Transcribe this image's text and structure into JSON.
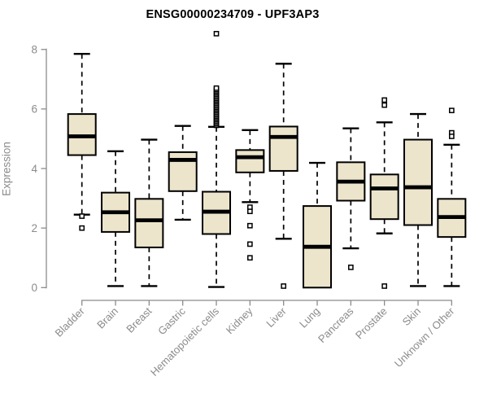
{
  "chart_data": {
    "type": "box",
    "title": "ENSG00000234709 - UPF3AP3",
    "ylabel": "Expression",
    "xlabel": "",
    "ylim": [
      0,
      8
    ],
    "yticks": [
      0,
      2,
      4,
      6,
      8
    ],
    "grid": false,
    "legend": "none",
    "categories": [
      "Bladder",
      "Brain",
      "Breast",
      "Gastric",
      "Hematopoietic cells",
      "Kidney",
      "Liver",
      "Lung",
      "Pancreas",
      "Prostate",
      "Skin",
      "Unknown / Other"
    ],
    "series": [
      {
        "name": "Bladder",
        "whisker_low": 2.45,
        "q1": 4.45,
        "median": 5.08,
        "q3": 5.83,
        "whisker_high": 7.85,
        "outliers": [
          2.4,
          2.0
        ]
      },
      {
        "name": "Brain",
        "whisker_low": 0.05,
        "q1": 1.87,
        "median": 2.53,
        "q3": 3.19,
        "whisker_high": 4.58,
        "outliers": []
      },
      {
        "name": "Breast",
        "whisker_low": 0.05,
        "q1": 1.35,
        "median": 2.26,
        "q3": 2.98,
        "whisker_high": 4.97,
        "outliers": []
      },
      {
        "name": "Gastric",
        "whisker_low": 2.28,
        "q1": 3.24,
        "median": 4.29,
        "q3": 4.55,
        "whisker_high": 5.43,
        "outliers": []
      },
      {
        "name": "Hematopoietic cells",
        "whisker_low": 0.02,
        "q1": 1.8,
        "median": 2.55,
        "q3": 3.22,
        "whisker_high": 5.4,
        "outliers": [
          5.45,
          5.5,
          5.55,
          5.6,
          5.65,
          5.7,
          5.75,
          5.8,
          5.85,
          5.9,
          5.95,
          6.0,
          6.05,
          6.1,
          6.15,
          6.2,
          6.25,
          6.3,
          6.35,
          6.4,
          6.45,
          6.5,
          6.55,
          6.6,
          6.65,
          6.7,
          8.53
        ]
      },
      {
        "name": "Kidney",
        "whisker_low": 2.87,
        "q1": 3.87,
        "median": 4.38,
        "q3": 4.62,
        "whisker_high": 5.29,
        "outliers": [
          2.7,
          2.56,
          2.08,
          1.46,
          1.0
        ]
      },
      {
        "name": "Liver",
        "whisker_low": 1.64,
        "q1": 3.92,
        "median": 5.06,
        "q3": 5.41,
        "whisker_high": 7.52,
        "outliers": [
          0.05
        ]
      },
      {
        "name": "Lung",
        "whisker_low": 0.0,
        "q1": 0.0,
        "median": 1.37,
        "q3": 2.74,
        "whisker_high": 4.19,
        "outliers": []
      },
      {
        "name": "Pancreas",
        "whisker_low": 1.32,
        "q1": 2.92,
        "median": 3.56,
        "q3": 4.21,
        "whisker_high": 5.35,
        "outliers": [
          0.68
        ]
      },
      {
        "name": "Prostate",
        "whisker_low": 1.82,
        "q1": 2.3,
        "median": 3.33,
        "q3": 3.8,
        "whisker_high": 5.55,
        "outliers": [
          6.3,
          6.13,
          0.05
        ]
      },
      {
        "name": "Skin",
        "whisker_low": 0.05,
        "q1": 2.1,
        "median": 3.37,
        "q3": 4.97,
        "whisker_high": 5.83,
        "outliers": []
      },
      {
        "name": "Unknown / Other",
        "whisker_low": 0.05,
        "q1": 1.7,
        "median": 2.37,
        "q3": 2.98,
        "whisker_high": 4.8,
        "outliers": [
          5.95,
          5.2,
          5.08
        ]
      }
    ],
    "colors": {
      "box_fill": "#ece5cc",
      "box_border": "#000000",
      "median": "#000000",
      "whisker": "#000000",
      "outlier": "#000000",
      "axis": "#8b8b8b",
      "tick_label": "#8b8b8b",
      "title": "#000000",
      "background": "#ffffff"
    }
  }
}
